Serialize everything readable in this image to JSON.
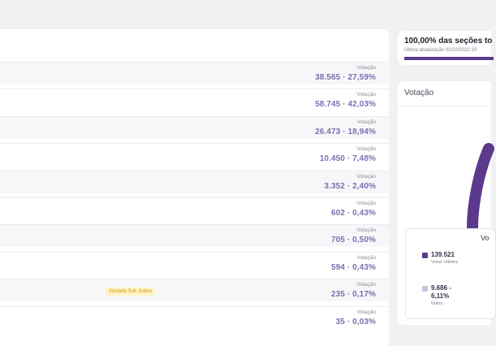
{
  "header": {
    "title": "100,00% das seções to",
    "subtitle": "Última atualização 02/10/2022 20",
    "progress_percent": 100
  },
  "vote_panel": {
    "title": "Votação",
    "legend_title_cut": "Vo"
  },
  "rows": [
    {
      "label": "Votação",
      "value": "38.565 · 27,59%"
    },
    {
      "label": "Votação",
      "value": "58.745 · 42,03%"
    },
    {
      "label": "Votação",
      "value": "26.473 · 18,94%"
    },
    {
      "label": "Votação",
      "value": "10.450 · 7,48%"
    },
    {
      "label": "Votação",
      "value": "3.352 · 2,40%"
    },
    {
      "label": "Votação",
      "value": "602 · 0,43%"
    },
    {
      "label": "Votação",
      "value": "705 · 0,50%"
    },
    {
      "label": "Votação",
      "value": "594 · 0,43%"
    },
    {
      "label": "Votação",
      "value": "235 · 0,17%",
      "badge": "Anulado Sub Judice"
    },
    {
      "label": "Votação",
      "value": "35 · 0,03%"
    }
  ],
  "legend": {
    "valid": {
      "number": "139.521",
      "caption": "Votos Válidos",
      "color": "#5b3a8e"
    },
    "null": {
      "number": "9.686 -",
      "number2": "6,11%",
      "caption": "Nulos",
      "color": "#c8c2dc"
    }
  },
  "colors": {
    "accent": "#5b3a8e",
    "value_text": "#7a6fb0"
  }
}
